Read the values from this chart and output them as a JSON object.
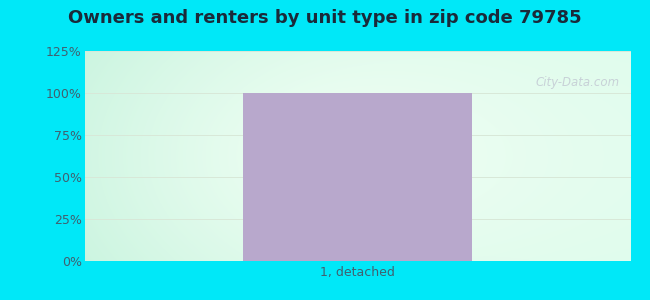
{
  "title": "Owners and renters by unit type in zip code 79785",
  "categories": [
    "1, detached"
  ],
  "values": [
    100
  ],
  "bar_color": "#b8a8cc",
  "ylabel_ticks": [
    0,
    25,
    50,
    75,
    100,
    125
  ],
  "ylim": [
    0,
    125
  ],
  "title_fontsize": 13,
  "tick_label_fontsize": 9,
  "xlabel_fontsize": 9,
  "fig_bg": "#00e8f8",
  "axes_bg_center": "#f2fef5",
  "axes_bg_edge_left": "#c8f5e0",
  "axes_bg_edge_right": "#e8fef0",
  "watermark_text": "City-Data.com",
  "watermark_color": "#c5cdd5",
  "grid_color": "#d8e8d8",
  "axis_label_color": "#406070",
  "title_color": "#1a2a3a",
  "bar_width": 0.42
}
